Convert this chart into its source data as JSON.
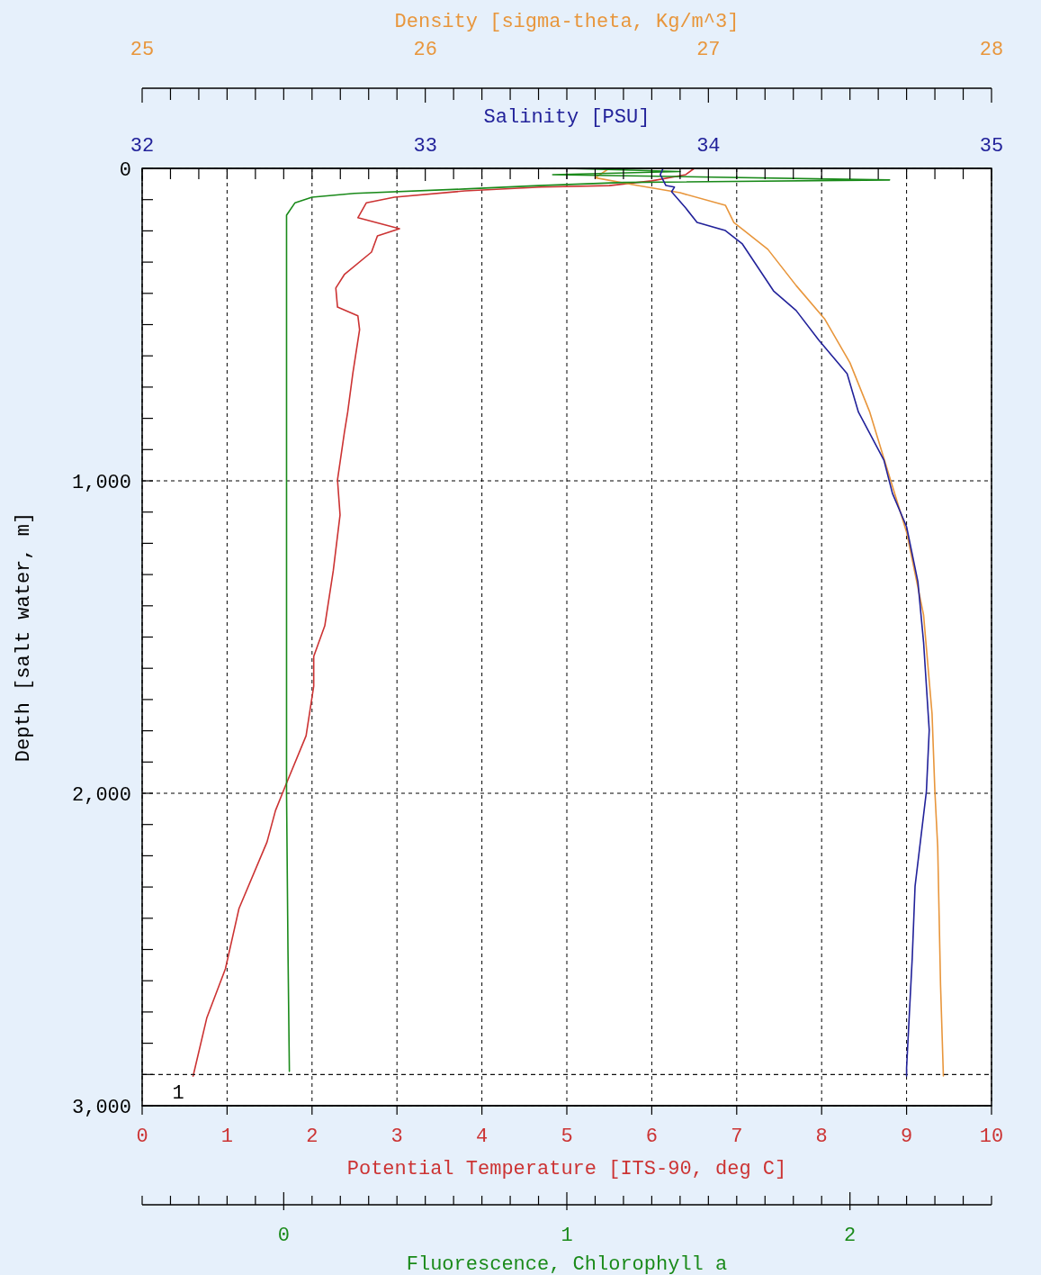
{
  "chart_data": [
    {
      "type": "line",
      "xlabel": "Potential Temperature [ITS-90, deg C]",
      "x2label": "Density [sigma-theta, Kg/m^3]",
      "ylabel": "Depth [salt water, m]",
      "xlim": [
        0,
        10
      ],
      "xticks": [
        0,
        1,
        2,
        3,
        4,
        5,
        6,
        7,
        8,
        9,
        10
      ],
      "x2lim": [
        25,
        28
      ],
      "x2ticks": [
        25,
        {
          "value": 25.1,
          "label": null
        },
        {
          "value": 25.2,
          "label": null
        },
        {
          "value": 25.3,
          "label": null
        },
        {
          "value": 25.4,
          "label": null
        },
        {
          "value": 25.5,
          "label": null
        },
        {
          "value": 25.6,
          "label": null
        },
        {
          "value": 25.7,
          "label": null
        },
        {
          "value": 25.8,
          "label": null
        },
        {
          "value": 25.9,
          "label": null
        },
        26,
        {
          "value": 26.1,
          "label": null
        },
        {
          "value": 26.2,
          "label": null
        },
        {
          "value": 26.3,
          "label": null
        },
        {
          "value": 26.4,
          "label": null
        },
        {
          "value": 26.5,
          "label": null
        },
        {
          "value": 26.6,
          "label": null
        },
        {
          "value": 26.7,
          "label": null
        },
        {
          "value": 26.8,
          "label": null
        },
        {
          "value": 26.9,
          "label": null
        },
        27,
        {
          "value": 27.1,
          "label": null
        },
        {
          "value": 27.2,
          "label": null
        },
        {
          "value": 27.3,
          "label": null
        },
        {
          "value": 27.4,
          "label": null
        },
        {
          "value": 27.5,
          "label": null
        },
        {
          "value": 27.6,
          "label": null
        },
        {
          "value": 27.7,
          "label": null
        },
        {
          "value": 27.8,
          "label": null
        },
        {
          "value": 27.9,
          "label": null
        },
        28
      ],
      "ylim": [
        3000,
        0
      ],
      "yticks": [
        0,
        {
          "value": 100,
          "label": null
        },
        {
          "value": 200,
          "label": null
        },
        {
          "value": 300,
          "label": null
        },
        {
          "value": 400,
          "label": null
        },
        {
          "value": 500,
          "label": null
        },
        {
          "value": 600,
          "label": null
        },
        {
          "value": 700,
          "label": null
        },
        {
          "value": 800,
          "label": null
        },
        {
          "value": 900,
          "label": null
        },
        {
          "value": 1000,
          "label": "1,000"
        },
        {
          "value": 1100,
          "label": null
        },
        {
          "value": 1200,
          "label": null
        },
        {
          "value": 1300,
          "label": null
        },
        {
          "value": 1400,
          "label": null
        },
        {
          "value": 1500,
          "label": null
        },
        {
          "value": 1600,
          "label": null
        },
        {
          "value": 1700,
          "label": null
        },
        {
          "value": 1800,
          "label": null
        },
        {
          "value": 1900,
          "label": null
        },
        {
          "value": 2000,
          "label": "2,000"
        },
        {
          "value": 2100,
          "label": null
        },
        {
          "value": 2200,
          "label": null
        },
        {
          "value": 2300,
          "label": null
        },
        {
          "value": 2400,
          "label": null
        },
        {
          "value": 2500,
          "label": null
        },
        {
          "value": 2600,
          "label": null
        },
        {
          "value": 2700,
          "label": null
        },
        {
          "value": 2800,
          "label": null
        },
        {
          "value": 2900,
          "label": null
        },
        {
          "value": 3000,
          "label": "3,000"
        }
      ],
      "grid": true,
      "ref_lines": [
        {
          "axis": "y",
          "value": 2900,
          "line_style": "dashed"
        }
      ],
      "annotations": [
        "1"
      ],
      "series": [
        {
          "color": "#cc3333",
          "x": [
            6.5,
            6.4,
            6.0,
            5.5,
            4.7,
            3.8,
            2.97,
            2.64,
            2.54,
            3.03,
            2.77,
            2.7,
            2.38,
            2.28,
            2.3,
            2.54,
            2.56,
            2.48,
            2.42,
            2.38,
            2.3,
            2.33,
            2.25,
            2.15,
            2.02,
            2.02,
            1.93,
            1.69,
            1.57,
            1.47,
            1.14,
            0.98,
            0.76,
            0.6
          ],
          "values": [
            0,
            20,
            40,
            55,
            60,
            72,
            92,
            110,
            158,
            193,
            216,
            268,
            340,
            383,
            444,
            472,
            516,
            657,
            780,
            847,
            997,
            1109,
            1288,
            1464,
            1562,
            1657,
            1816,
            1974,
            2055,
            2156,
            2369,
            2562,
            2720,
            2905
          ]
        },
        {
          "color": "#e8963c",
          "axis": "x2",
          "x": [
            26.65,
            26.6,
            26.75,
            26.9,
            27.06,
            27.09,
            27.21,
            27.31,
            27.41,
            27.5,
            27.57,
            27.64,
            27.7,
            27.76,
            27.79,
            27.8,
            27.81,
            27.82,
            27.83
          ],
          "values": [
            0,
            30,
            55,
            78,
            118,
            173,
            259,
            375,
            481,
            622,
            780,
            988,
            1164,
            1429,
            1746,
            1994,
            2173,
            2614,
            2905
          ]
        }
      ]
    },
    {
      "type": "line",
      "xlabel": "Fluorescence, Chlorophyll a",
      "x2label": "Salinity [PSU]",
      "tick_labels": "x",
      "xlim": [
        -0.5,
        2.5
      ],
      "xticks": [
        {
          "value": -0.5,
          "label": null
        },
        {
          "value": -0.4,
          "label": null
        },
        {
          "value": -0.3,
          "label": null
        },
        {
          "value": -0.2,
          "label": null
        },
        {
          "value": -0.1,
          "label": null
        },
        0,
        {
          "value": 0.1,
          "label": null
        },
        {
          "value": 0.2,
          "label": null
        },
        {
          "value": 0.3,
          "label": null
        },
        {
          "value": 0.4,
          "label": null
        },
        {
          "value": 0.5,
          "label": null
        },
        {
          "value": 0.6,
          "label": null
        },
        {
          "value": 0.7,
          "label": null
        },
        {
          "value": 0.8,
          "label": null
        },
        {
          "value": 0.9,
          "label": null
        },
        1,
        {
          "value": 1.1,
          "label": null
        },
        {
          "value": 1.2,
          "label": null
        },
        {
          "value": 1.3,
          "label": null
        },
        {
          "value": 1.4,
          "label": null
        },
        {
          "value": 1.5,
          "label": null
        },
        {
          "value": 1.6,
          "label": null
        },
        {
          "value": 1.7,
          "label": null
        },
        {
          "value": 1.8,
          "label": null
        },
        {
          "value": 1.9,
          "label": null
        },
        2,
        {
          "value": 2.1,
          "label": null
        },
        {
          "value": 2.2,
          "label": null
        },
        {
          "value": 2.3,
          "label": null
        },
        {
          "value": 2.4,
          "label": null
        },
        {
          "value": 2.5,
          "label": null
        }
      ],
      "x2lim": [
        32,
        35
      ],
      "x2ticks": [
        32,
        {
          "value": 32.1,
          "label": null
        },
        {
          "value": 32.2,
          "label": null
        },
        {
          "value": 32.3,
          "label": null
        },
        {
          "value": 32.4,
          "label": null
        },
        {
          "value": 32.5,
          "label": null
        },
        {
          "value": 32.6,
          "label": null
        },
        {
          "value": 32.7,
          "label": null
        },
        {
          "value": 32.8,
          "label": null
        },
        {
          "value": 32.9,
          "label": null
        },
        33,
        {
          "value": 33.1,
          "label": null
        },
        {
          "value": 33.2,
          "label": null
        },
        {
          "value": 33.3,
          "label": null
        },
        {
          "value": 33.4,
          "label": null
        },
        {
          "value": 33.5,
          "label": null
        },
        {
          "value": 33.6,
          "label": null
        },
        {
          "value": 33.7,
          "label": null
        },
        {
          "value": 33.8,
          "label": null
        },
        {
          "value": 33.9,
          "label": null
        },
        34,
        {
          "value": 34.1,
          "label": null
        },
        {
          "value": 34.2,
          "label": null
        },
        {
          "value": 34.3,
          "label": null
        },
        {
          "value": 34.4,
          "label": null
        },
        {
          "value": 34.5,
          "label": null
        },
        {
          "value": 34.6,
          "label": null
        },
        {
          "value": 34.7,
          "label": null
        },
        {
          "value": 34.8,
          "label": null
        },
        {
          "value": 34.9,
          "label": null
        },
        35
      ],
      "ylim": [
        3000,
        0
      ],
      "series": [
        {
          "color": "#1a8a1a",
          "x": [
            1.0,
            1.4,
            0.95,
            2.14,
            1.2,
            0.9,
            0.64,
            0.25,
            0.1,
            0.04,
            0.01,
            0.01,
            0.01,
            0.01,
            0.015,
            0.02
          ],
          "values": [
            0,
            10,
            20,
            37,
            45,
            55,
            66,
            80,
            92,
            110,
            150,
            500,
            1000,
            2000,
            2500,
            2890
          ]
        },
        {
          "color": "#22229a",
          "axis": "x2",
          "x": [
            33.84,
            33.83,
            33.85,
            33.88,
            33.87,
            33.92,
            33.96,
            34.06,
            34.12,
            34.23,
            34.31,
            34.39,
            34.49,
            34.53,
            34.62,
            34.65,
            34.7,
            34.74,
            34.76,
            34.78,
            34.77,
            34.73,
            34.72,
            34.7,
            34.7
          ],
          "values": [
            0,
            20,
            55,
            60,
            75,
            127,
            173,
            199,
            242,
            392,
            455,
            550,
            657,
            780,
            934,
            1040,
            1147,
            1323,
            1516,
            1798,
            1994,
            2297,
            2527,
            2879,
            2905
          ]
        }
      ]
    }
  ]
}
